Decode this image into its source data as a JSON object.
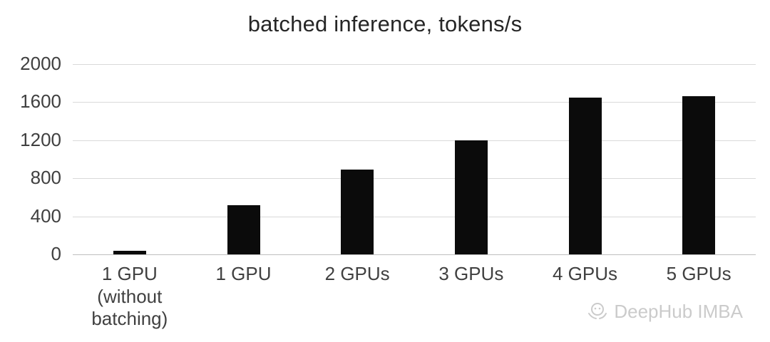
{
  "chart_data": {
    "type": "bar",
    "title": "batched inference, tokens/s",
    "categories": [
      "1 GPU\n(without\nbatching)",
      "1 GPU",
      "2 GPUs",
      "3 GPUs",
      "4 GPUs",
      "5 GPUs"
    ],
    "values": [
      40,
      520,
      890,
      1200,
      1650,
      1660
    ],
    "xlabel": "",
    "ylabel": "",
    "ylim": [
      0,
      2000
    ],
    "yticks": [
      0,
      400,
      800,
      1200,
      1600,
      2000
    ],
    "grid": true,
    "legend": "none",
    "bar_color": "#0b0b0b"
  },
  "watermark": {
    "text": "DeepHub IMBA"
  }
}
